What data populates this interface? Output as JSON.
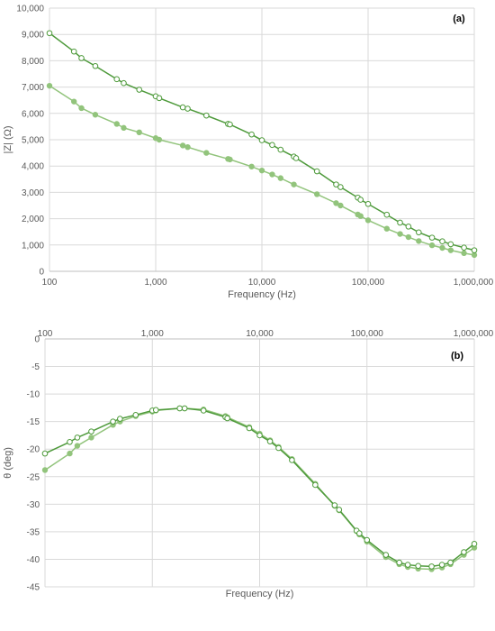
{
  "chart_data": [
    {
      "type": "line",
      "panel_label": "(a)",
      "xlabel": "Frequency (Hz)",
      "ylabel": "|Z| (Ω)",
      "xscale": "log",
      "xlim": [
        100,
        1000000
      ],
      "ylim": [
        0,
        10000
      ],
      "grid": true,
      "xtick_labels": [
        "100",
        "1,000",
        "10,000",
        "100,000",
        "1,000,000"
      ],
      "xtick_values": [
        100,
        1000,
        10000,
        100000,
        1000000
      ],
      "ytick_labels": [
        "0",
        "1,000",
        "2,000",
        "3,000",
        "4,000",
        "5,000",
        "6,000",
        "7,000",
        "8,000",
        "9,000",
        "10,000"
      ],
      "ytick_values": [
        0,
        1000,
        2000,
        3000,
        4000,
        5000,
        6000,
        7000,
        8000,
        9000,
        10000
      ],
      "series": [
        {
          "marker": "open-circle",
          "color": "#4e9a3b",
          "x": [
            100,
            170,
            200,
            270,
            430,
            500,
            700,
            1000,
            1080,
            1800,
            2000,
            3000,
            4800,
            5000,
            8000,
            10000,
            12500,
            15000,
            20000,
            21000,
            33000,
            50000,
            55000,
            80000,
            85000,
            100000,
            150000,
            200000,
            240000,
            300000,
            400000,
            500000,
            600000,
            800000,
            1000000
          ],
          "y": [
            9050,
            8350,
            8100,
            7800,
            7300,
            7150,
            6900,
            6650,
            6580,
            6230,
            6180,
            5920,
            5600,
            5580,
            5200,
            4980,
            4800,
            4620,
            4360,
            4300,
            3800,
            3300,
            3200,
            2800,
            2720,
            2560,
            2150,
            1850,
            1700,
            1480,
            1280,
            1140,
            1030,
            900,
            800
          ]
        },
        {
          "marker": "filled-circle",
          "color": "#92c47c",
          "x": [
            100,
            170,
            200,
            270,
            430,
            500,
            700,
            1000,
            1080,
            1800,
            2000,
            3000,
            4800,
            5000,
            8000,
            10000,
            12500,
            15000,
            20000,
            33000,
            50000,
            55000,
            80000,
            85000,
            100000,
            150000,
            200000,
            240000,
            300000,
            400000,
            500000,
            600000,
            800000,
            1000000
          ],
          "y": [
            7050,
            6450,
            6200,
            5950,
            5600,
            5450,
            5280,
            5060,
            5000,
            4780,
            4720,
            4500,
            4270,
            4250,
            3980,
            3830,
            3680,
            3540,
            3300,
            2930,
            2590,
            2500,
            2160,
            2100,
            1940,
            1620,
            1420,
            1300,
            1150,
            990,
            890,
            800,
            690,
            620
          ]
        }
      ]
    },
    {
      "type": "line",
      "panel_label": "(b)",
      "xlabel": "Frequency (Hz)",
      "ylabel": "θ (deg)",
      "xscale": "log",
      "xlim": [
        100,
        1000000
      ],
      "ylim": [
        -45,
        0
      ],
      "grid": true,
      "xtick_labels": [
        "100",
        "1,000",
        "10,000",
        "100,000",
        "1,000,000"
      ],
      "xtick_values": [
        100,
        1000,
        10000,
        100000,
        1000000
      ],
      "ytick_labels": [
        "0",
        "-5",
        "-10",
        "-15",
        "-20",
        "-25",
        "-30",
        "-35",
        "-40",
        "-45"
      ],
      "ytick_values": [
        0,
        -5,
        -10,
        -15,
        -20,
        -25,
        -30,
        -35,
        -40,
        -45
      ],
      "series": [
        {
          "marker": "open-circle",
          "color": "#4e9a3b",
          "x": [
            100,
            170,
            200,
            270,
            430,
            500,
            700,
            1000,
            1080,
            1800,
            2000,
            3000,
            4800,
            5000,
            8000,
            10000,
            12500,
            15000,
            20000,
            33000,
            50000,
            55000,
            80000,
            85000,
            100000,
            150000,
            200000,
            240000,
            300000,
            400000,
            500000,
            600000,
            800000,
            1000000
          ],
          "y": [
            -20.8,
            -18.7,
            -17.9,
            -16.8,
            -15.0,
            -14.5,
            -13.8,
            -13.0,
            -12.9,
            -12.6,
            -12.6,
            -13.0,
            -14.2,
            -14.4,
            -16.2,
            -17.5,
            -18.6,
            -19.8,
            -22.0,
            -26.5,
            -30.2,
            -31.0,
            -34.8,
            -35.3,
            -36.5,
            -39.2,
            -40.6,
            -41.0,
            -41.2,
            -41.3,
            -41.0,
            -40.6,
            -38.7,
            -37.2
          ]
        },
        {
          "marker": "filled-circle",
          "color": "#92c47c",
          "x": [
            100,
            170,
            200,
            270,
            430,
            500,
            700,
            1000,
            1080,
            1800,
            2000,
            3000,
            4800,
            5000,
            8000,
            10000,
            12500,
            15000,
            20000,
            33000,
            50000,
            55000,
            80000,
            85000,
            100000,
            150000,
            200000,
            240000,
            300000,
            400000,
            500000,
            600000,
            800000,
            1000000
          ],
          "y": [
            -23.8,
            -20.8,
            -19.4,
            -17.9,
            -15.6,
            -15.0,
            -14.0,
            -13.2,
            -13.0,
            -12.6,
            -12.6,
            -12.8,
            -14.0,
            -14.2,
            -16.0,
            -17.2,
            -18.4,
            -19.6,
            -21.8,
            -26.3,
            -30.3,
            -31.1,
            -34.9,
            -35.5,
            -36.8,
            -39.6,
            -40.9,
            -41.4,
            -41.7,
            -41.8,
            -41.5,
            -40.9,
            -39.2,
            -37.9
          ]
        }
      ]
    }
  ]
}
